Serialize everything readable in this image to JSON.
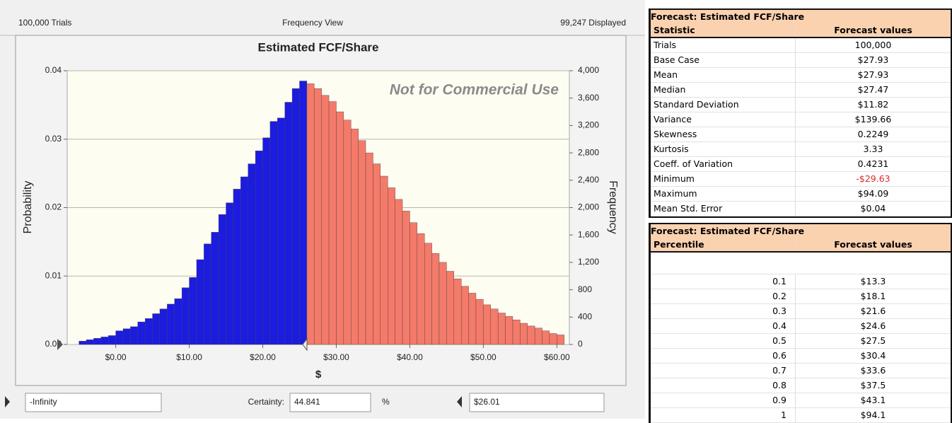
{
  "window": {
    "trials_label": "100,000 Trials",
    "view_label": "Frequency View",
    "displayed_label": "99,247 Displayed",
    "lower_limit": "-Infinity",
    "certainty_label": "Certainty:",
    "certainty_value": "44.841",
    "certainty_unit": "%"
  },
  "chart_data": {
    "type": "histogram",
    "title": "Estimated FCF/Share",
    "watermark": "Not for Commercial Use",
    "x_label": "$",
    "y_label": "Probability",
    "y2_label": "Frequency",
    "bins": [
      -5,
      -4,
      -3,
      -2,
      -1,
      0,
      1,
      2,
      3,
      4,
      5,
      6,
      7,
      8,
      9,
      10,
      11,
      12,
      13,
      14,
      15,
      16,
      17,
      18,
      19,
      20,
      21,
      22,
      23,
      24,
      25,
      26,
      27,
      28,
      29,
      30,
      31,
      32,
      33,
      34,
      35,
      36,
      37,
      38,
      39,
      40,
      41,
      42,
      43,
      44,
      45,
      46,
      47,
      48,
      49,
      50,
      51,
      52,
      53,
      54,
      55,
      56,
      57,
      58,
      59,
      60,
      61
    ],
    "counts": [
      50,
      70,
      90,
      110,
      130,
      200,
      230,
      260,
      330,
      380,
      450,
      520,
      590,
      670,
      830,
      980,
      1240,
      1470,
      1640,
      1900,
      2070,
      2270,
      2450,
      2640,
      2830,
      3020,
      3260,
      3310,
      3540,
      3740,
      3850,
      3810,
      3740,
      3640,
      3550,
      3400,
      3280,
      3150,
      2980,
      2800,
      2640,
      2460,
      2290,
      2120,
      1950,
      1780,
      1620,
      1480,
      1330,
      1200,
      1070,
      960,
      850,
      750,
      660,
      580,
      520,
      460,
      410,
      360,
      310,
      270,
      240,
      200,
      160,
      140
    ],
    "counts_axis": "y2",
    "upper_limit": {
      "value": 26.01,
      "label": "$26.01"
    },
    "in_range_color": "#1c1ce0",
    "out_range_color": "#f47a6a",
    "xlim": [
      -6.6,
      61.7
    ],
    "xticks": [
      {
        "value": 0,
        "label": "$0.00"
      },
      {
        "value": 10,
        "label": "$10.00"
      },
      {
        "value": 20,
        "label": "$20.00"
      },
      {
        "value": 30,
        "label": "$30.00"
      },
      {
        "value": 40,
        "label": "$40.00"
      },
      {
        "value": 50,
        "label": "$50.00"
      },
      {
        "value": 60,
        "label": "$60.00"
      }
    ],
    "ylim": [
      0,
      0.04
    ],
    "yticks": [
      {
        "value": 0,
        "label": "0.00"
      },
      0.01,
      0.02,
      0.03,
      0.04
    ],
    "y2lim": [
      0,
      4000
    ],
    "y2ticks": [
      0,
      400,
      800,
      {
        "value": 1200,
        "label": "1,200"
      },
      {
        "value": 1600,
        "label": "1,600"
      },
      {
        "value": 2000,
        "label": "2,000"
      },
      {
        "value": 2400,
        "label": "2,400"
      },
      {
        "value": 2800,
        "label": "2,800"
      },
      {
        "value": 3200,
        "label": "3,200"
      },
      {
        "value": 3600,
        "label": "3,600"
      },
      {
        "value": 4000,
        "label": "4,000"
      }
    ],
    "grid": true
  },
  "stats_table": {
    "title": "Forecast: Estimated FCF/Share",
    "header": [
      "Statistic",
      "Forecast values"
    ],
    "rows": [
      [
        "Trials",
        "100,000"
      ],
      [
        "Base Case",
        "$27.93"
      ],
      [
        "Mean",
        "$27.93"
      ],
      [
        "Median",
        "$27.47"
      ],
      [
        "Standard Deviation",
        "$11.82"
      ],
      [
        "Variance",
        "$139.66"
      ],
      [
        "Skewness",
        "0.2249"
      ],
      [
        "Kurtosis",
        "3.33"
      ],
      [
        "Coeff. of Variation",
        "0.4231"
      ],
      [
        "Minimum",
        "-$29.63"
      ],
      [
        "Maximum",
        "$94.09"
      ],
      [
        "Mean Std. Error",
        "$0.04"
      ]
    ]
  },
  "percentile_table": {
    "title": "Forecast: Estimated FCF/Share",
    "header": [
      "Percentile",
      "Forecast values"
    ],
    "rows": [
      [
        0.1,
        "$13.3"
      ],
      [
        0.2,
        "$18.1"
      ],
      [
        0.3,
        "$21.6"
      ],
      [
        0.4,
        "$24.6"
      ],
      [
        0.5,
        "$27.5"
      ],
      [
        0.6,
        "$30.4"
      ],
      [
        0.7,
        "$33.6"
      ],
      [
        0.8,
        "$37.5"
      ],
      [
        0.9,
        "$43.1"
      ],
      [
        1,
        "$94.1"
      ]
    ]
  }
}
